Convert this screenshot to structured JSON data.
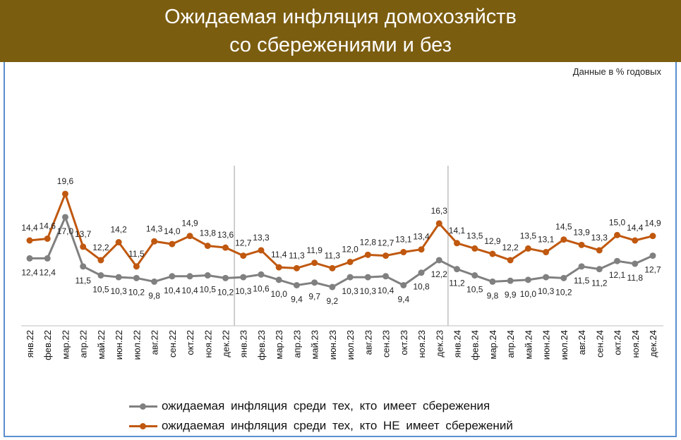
{
  "title": {
    "line1": "Ожидаемая инфляция домохозяйств",
    "line2": "со сбережениями и без"
  },
  "units_note": "Данные в % годовых",
  "colors": {
    "title_bg": "#7b5d10",
    "with_savings": "#808080",
    "without_savings": "#c0580f"
  },
  "chart_data": {
    "type": "line",
    "title": "Ожидаемая инфляция домохозяйств со сбережениями и без",
    "ylabel": "Данные в % годовых",
    "grid": false,
    "legend_position": "bottom",
    "categories": [
      "янв.22",
      "фев.22",
      "мар.22",
      "апр.22",
      "май.22",
      "июн.22",
      "июл.22",
      "авг.22",
      "сен.22",
      "окт.22",
      "ноя.22",
      "дек.22",
      "янв.23",
      "фев.23",
      "мар.23",
      "апр.23",
      "май.23",
      "июн.23",
      "июл.23",
      "авг.23",
      "сен.23",
      "окт.23",
      "ноя.23",
      "дек.23",
      "янв.24",
      "фев.24",
      "мар.24",
      "апр.24",
      "май.24",
      "июн.24",
      "июл.24",
      "авг.24",
      "сен.24",
      "окт.24",
      "ноя.24",
      "дек.24"
    ],
    "series": [
      {
        "name": "ожидаемая  инфляция  среди тех, кто имеет сбережения",
        "color": "#808080",
        "label_position": "below",
        "values": [
          12.4,
          12.4,
          17.0,
          11.5,
          10.5,
          10.3,
          10.2,
          9.8,
          10.4,
          10.4,
          10.5,
          10.2,
          10.3,
          10.6,
          10.0,
          9.4,
          9.7,
          9.2,
          10.3,
          10.3,
          10.4,
          9.4,
          10.8,
          12.2,
          11.2,
          10.5,
          9.8,
          9.9,
          10.0,
          10.3,
          10.2,
          11.5,
          11.2,
          12.1,
          11.8,
          12.7
        ]
      },
      {
        "name": "ожидаемая  инфляция  среди тех, кто НЕ имеет сбережений",
        "color": "#c0580f",
        "label_position": "above",
        "values": [
          14.4,
          14.6,
          19.6,
          13.7,
          12.2,
          14.2,
          11.5,
          14.3,
          14.0,
          14.9,
          13.8,
          13.6,
          12.7,
          13.3,
          11.4,
          11.3,
          11.9,
          11.3,
          12.0,
          12.8,
          12.7,
          13.1,
          13.4,
          16.3,
          14.1,
          13.5,
          12.9,
          12.2,
          13.5,
          13.1,
          14.5,
          13.9,
          13.3,
          15.0,
          14.4,
          14.9
        ]
      }
    ],
    "year_separators_after": [
      "дек.22",
      "дек.23"
    ]
  }
}
